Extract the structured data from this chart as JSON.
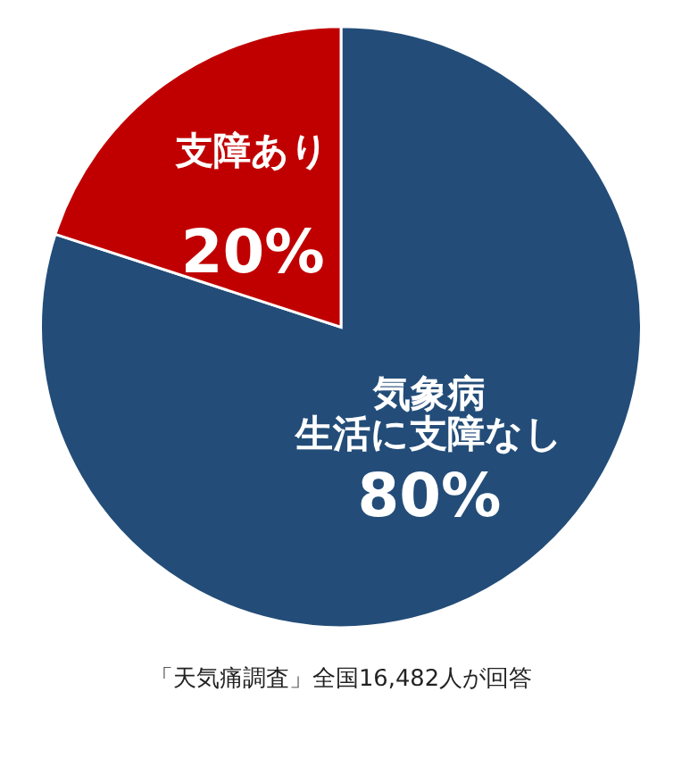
{
  "chart_data": {
    "type": "pie",
    "categories": [
      "気象病生活に支障なし",
      "支障あり"
    ],
    "values": [
      80,
      20
    ],
    "value_labels": [
      "80%",
      "20%"
    ],
    "colors": [
      "#234d78",
      "#c00000"
    ],
    "legend": false,
    "annotations": [
      "「天気痛調査」全国16,482人が回答"
    ]
  }
}
